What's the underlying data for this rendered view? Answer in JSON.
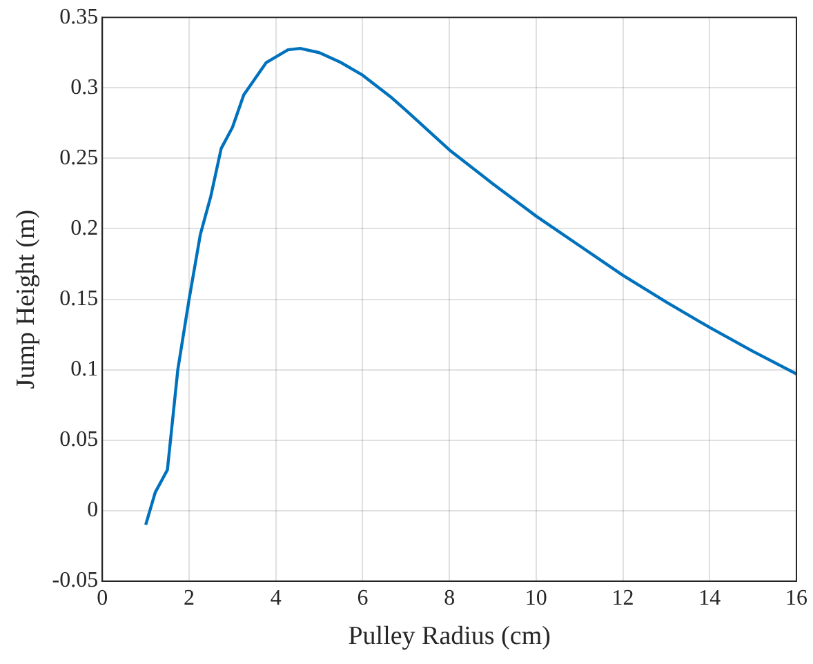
{
  "chart_data": {
    "type": "line",
    "xlabel": "Pulley Radius (cm)",
    "ylabel": "Jump Height (m)",
    "x": [
      1.0,
      1.22,
      1.5,
      1.74,
      2.0,
      2.26,
      2.5,
      2.74,
      3.0,
      3.26,
      3.78,
      4.28,
      4.56,
      5.0,
      5.5,
      6.0,
      6.67,
      7.0,
      8.0,
      9.0,
      10.0,
      11.0,
      12.0,
      13.0,
      14.0,
      15.0,
      16.0
    ],
    "series": [
      {
        "color": "#0072bd",
        "values": [
          -0.01,
          0.013,
          0.029,
          0.1,
          0.15,
          0.196,
          0.223,
          0.257,
          0.272,
          0.295,
          0.318,
          0.327,
          0.328,
          0.325,
          0.318,
          0.309,
          0.293,
          0.284,
          0.256,
          0.232,
          0.209,
          0.188,
          0.167,
          0.148,
          0.13,
          0.113,
          0.097
        ]
      }
    ],
    "xlim": [
      0,
      16
    ],
    "xticks": [
      0,
      2,
      4,
      6,
      8,
      10,
      12,
      14,
      16
    ],
    "ylim": [
      -0.05,
      0.35
    ],
    "yticks": [
      -0.05,
      0,
      0.05,
      0.1,
      0.15,
      0.2,
      0.25,
      0.3,
      0.35
    ],
    "grid": true,
    "legend": false,
    "marker": "none",
    "line_style": "solid"
  }
}
